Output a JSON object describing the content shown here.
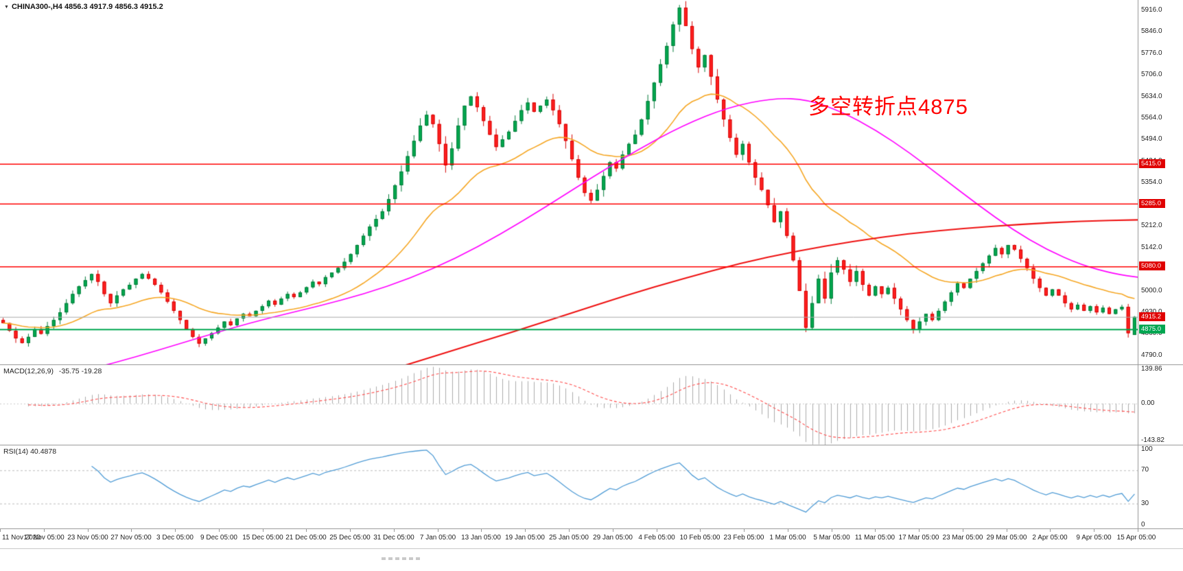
{
  "header": {
    "dropdown_icon": "▼",
    "symbol_info": "CHINA300-,H4  4856.3 4917.9 4856.3 4915.2"
  },
  "annotation": {
    "text": "多空转折点4875",
    "color": "#ff0000"
  },
  "colors": {
    "bull": "#00a94f",
    "bull_border": "#007a38",
    "bear": "#ff2020",
    "bear_border": "#d40000",
    "ma_orange": "#f5a623",
    "ma_magenta": "#ff00ff",
    "ma_red": "#ee1111",
    "level_red": "#ff0000",
    "level_green": "#00a651",
    "current_line": "#a8a8a8",
    "macd_hist": "#ababab",
    "macd_signal": "#ff4a4a",
    "rsi_line": "#4f9bd5"
  },
  "main_axis": {
    "ticks": [
      "5916.0",
      "5846.0",
      "5776.0",
      "5706.0",
      "5634.0",
      "5564.0",
      "5494.0",
      "5424.0",
      "5354.0",
      "5284.0",
      "5212.0",
      "5142.0",
      "5072.0",
      "5000.0",
      "4930.0",
      "4860.0",
      "4790.0"
    ]
  },
  "price_lines": [
    {
      "label": "5415.0",
      "price": 5415.0,
      "color": "#ff0000",
      "badge_bg": "#e00000",
      "width": 1.4
    },
    {
      "label": "5285.0",
      "price": 5285.0,
      "color": "#ff0000",
      "badge_bg": "#e00000",
      "width": 1.4
    },
    {
      "label": "5080.0",
      "price": 5080.0,
      "color": "#ff0000",
      "badge_bg": "#e00000",
      "width": 1.6
    },
    {
      "label": "4875.0",
      "price": 4875.0,
      "color": "#00a651",
      "badge_bg": "#00a651",
      "width": 2.0
    }
  ],
  "current_price": {
    "label": "4915.2",
    "value": 4915.2,
    "line_color": "#aaaaaa",
    "badge_bg": "#e00000"
  },
  "macd": {
    "label": "MACD(12,26,9)",
    "values_text": "-35.75 -19.28",
    "params": {
      "fast": 12,
      "slow": 26,
      "signal": 9
    },
    "axis_labels": [
      {
        "text": "139.86",
        "value": 139.86
      },
      {
        "text": "0.00",
        "value": 0
      },
      {
        "text": "-143.82",
        "value": -143.82
      }
    ],
    "scale": {
      "min": -160,
      "max": 150
    }
  },
  "rsi": {
    "label": "RSI(14) 40.4878",
    "period": 14,
    "levels": [
      70,
      30
    ],
    "axis_labels": [
      {
        "text": "100",
        "value": 100
      },
      {
        "text": "70",
        "value": 70
      },
      {
        "text": "30",
        "value": 30
      },
      {
        "text": "0",
        "value": 0
      }
    ]
  },
  "time_axis": {
    "labels": [
      "11 Nov 2020",
      "17 Nov 05:00",
      "23 Nov 05:00",
      "27 Nov 05:00",
      "3 Dec 05:00",
      "9 Dec 05:00",
      "15 Dec 05:00",
      "21 Dec 05:00",
      "25 Dec 05:00",
      "31 Dec 05:00",
      "7 Jan 05:00",
      "13 Jan 05:00",
      "19 Jan 05:00",
      "25 Jan 05:00",
      "29 Jan 05:00",
      "4 Feb 05:00",
      "10 Feb 05:00",
      "23 Feb 05:00",
      "1 Mar 05:00",
      "5 Mar 05:00",
      "11 Mar 05:00",
      "17 Mar 05:00",
      "23 Mar 05:00",
      "29 Mar 05:00",
      "2 Apr 05:00",
      "9 Apr 05:00",
      "15 Apr 05:00"
    ]
  },
  "chart_data": {
    "type": "candlestick",
    "symbol": "CHINA300-",
    "timeframe": "H4",
    "title": "CHINA300- H4 candlestick chart with MA overlays, MACD(12,26,9) and RSI(14)",
    "ohlc_current": {
      "open": 4856.3,
      "high": 4917.9,
      "low": 4856.3,
      "close": 4915.2
    },
    "price_range": {
      "min": 4760,
      "max": 5950
    },
    "first_open": 4905,
    "closes": [
      4895,
      4870,
      4845,
      4830,
      4850,
      4875,
      4860,
      4885,
      4905,
      4930,
      4960,
      4990,
      5015,
      5035,
      5055,
      5030,
      4990,
      4960,
      4985,
      5005,
      5020,
      5040,
      5055,
      5040,
      5020,
      4995,
      4965,
      4935,
      4905,
      4875,
      4850,
      4828,
      4845,
      4862,
      4880,
      4900,
      4888,
      4910,
      4925,
      4918,
      4935,
      4950,
      4968,
      4955,
      4975,
      4990,
      4980,
      4995,
      5012,
      5030,
      5022,
      5045,
      5060,
      5075,
      5095,
      5120,
      5150,
      5180,
      5210,
      5235,
      5260,
      5300,
      5345,
      5390,
      5440,
      5490,
      5540,
      5575,
      5545,
      5480,
      5410,
      5465,
      5540,
      5605,
      5635,
      5600,
      5555,
      5510,
      5470,
      5495,
      5520,
      5555,
      5590,
      5615,
      5585,
      5605,
      5625,
      5590,
      5545,
      5490,
      5430,
      5370,
      5320,
      5295,
      5330,
      5375,
      5420,
      5400,
      5445,
      5480,
      5510,
      5560,
      5620,
      5680,
      5740,
      5800,
      5870,
      5925,
      5865,
      5790,
      5730,
      5770,
      5700,
      5625,
      5560,
      5500,
      5445,
      5480,
      5420,
      5370,
      5330,
      5280,
      5225,
      5260,
      5180,
      5100,
      5000,
      4880,
      4960,
      5040,
      4975,
      5060,
      5100,
      5070,
      5030,
      5065,
      5020,
      4985,
      5015,
      4990,
      5010,
      4975,
      4940,
      4905,
      4875,
      4900,
      4925,
      4905,
      4935,
      4965,
      4995,
      5025,
      5010,
      5040,
      5065,
      5090,
      5115,
      5140,
      5120,
      5150,
      5135,
      5105,
      5075,
      5040,
      5010,
      4985,
      5005,
      4985,
      4960,
      4940,
      4955,
      4935,
      4950,
      4930,
      4945,
      4925,
      4940,
      4948,
      4862,
      4915.2
    ],
    "overlays": {
      "orange_ema_period": 25,
      "magenta_anchors": [
        [
          0.0,
          4690
        ],
        [
          0.04,
          4715
        ],
        [
          0.08,
          4745
        ],
        [
          0.12,
          4785
        ],
        [
          0.16,
          4830
        ],
        [
          0.2,
          4875
        ],
        [
          0.24,
          4915
        ],
        [
          0.28,
          4950
        ],
        [
          0.32,
          4990
        ],
        [
          0.36,
          5040
        ],
        [
          0.4,
          5105
        ],
        [
          0.44,
          5185
        ],
        [
          0.48,
          5275
        ],
        [
          0.52,
          5370
        ],
        [
          0.56,
          5460
        ],
        [
          0.6,
          5540
        ],
        [
          0.64,
          5600
        ],
        [
          0.68,
          5630
        ],
        [
          0.71,
          5625
        ],
        [
          0.74,
          5585
        ],
        [
          0.77,
          5525
        ],
        [
          0.8,
          5450
        ],
        [
          0.83,
          5365
        ],
        [
          0.86,
          5280
        ],
        [
          0.89,
          5200
        ],
        [
          0.92,
          5135
        ],
        [
          0.95,
          5085
        ],
        [
          0.98,
          5055
        ],
        [
          1.0,
          5045
        ]
      ],
      "red_anchors": [
        [
          0.25,
          4645
        ],
        [
          0.3,
          4695
        ],
        [
          0.35,
          4750
        ],
        [
          0.4,
          4808
        ],
        [
          0.45,
          4865
        ],
        [
          0.5,
          4925
        ],
        [
          0.55,
          4985
        ],
        [
          0.6,
          5040
        ],
        [
          0.65,
          5090
        ],
        [
          0.7,
          5130
        ],
        [
          0.75,
          5162
        ],
        [
          0.8,
          5188
        ],
        [
          0.85,
          5205
        ],
        [
          0.9,
          5218
        ],
        [
          0.95,
          5228
        ],
        [
          1.0,
          5232
        ]
      ]
    }
  }
}
